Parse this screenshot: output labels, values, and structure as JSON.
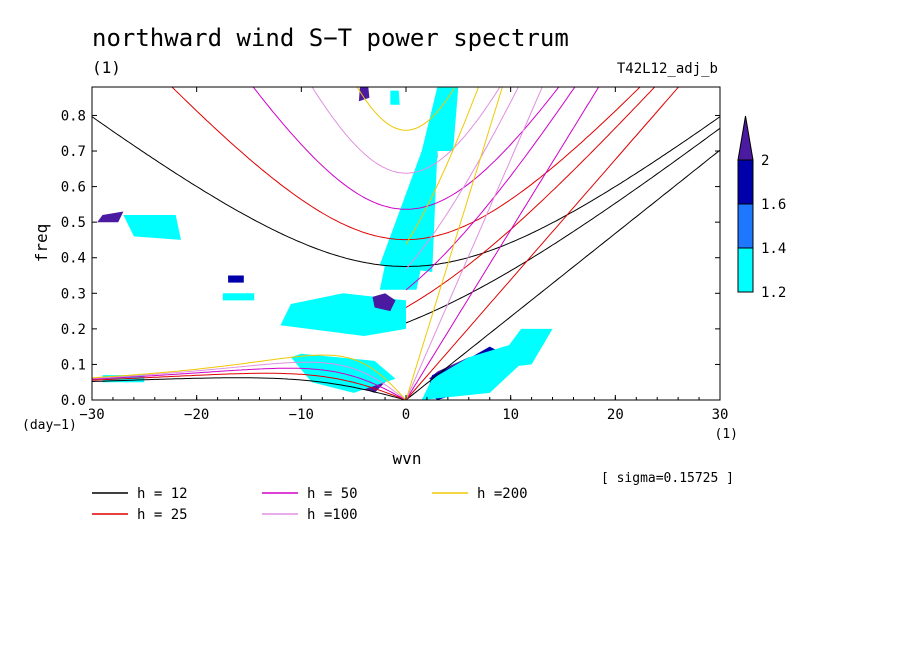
{
  "chart_data": {
    "type": "heatmap",
    "title": "northward wind S−T power spectrum",
    "units_top": "(1)",
    "run_id": "T42L12_adj_b",
    "xlabel": "wvn",
    "ylabel": "freq",
    "x_units": "(1)",
    "y_units": "(day−1)",
    "annotation": "[ sigma=0.15725 ]",
    "xlim": [
      -30,
      30
    ],
    "ylim": [
      0,
      0.88
    ],
    "xticks": [
      -30,
      -20,
      -10,
      0,
      10,
      20,
      30
    ],
    "xtick_labels": [
      "−30",
      "−20",
      "−10",
      "0",
      "10",
      "20",
      "30"
    ],
    "yticks": [
      0.0,
      0.1,
      0.2,
      0.3,
      0.4,
      0.5,
      0.6,
      0.7,
      0.8
    ],
    "ytick_labels": [
      "0.0",
      "0.1",
      "0.2",
      "0.3",
      "0.4",
      "0.5",
      "0.6",
      "0.7",
      "0.8"
    ],
    "colorbar": {
      "levels": [
        1.2,
        1.4,
        1.6,
        2
      ],
      "labels": [
        "1.2",
        "1.4",
        "1.6",
        "2"
      ],
      "colors": [
        "#00ffff",
        "#1e78ff",
        "#0000aa",
        "#4a1aa0"
      ]
    },
    "dispersion_curves": [
      {
        "name": "h = 12",
        "h": 12,
        "color": "#000000"
      },
      {
        "name": "h = 25",
        "h": 25,
        "color": "#e00000"
      },
      {
        "name": "h = 50",
        "h": 50,
        "color": "#d000c8"
      },
      {
        "name": "h =100",
        "h": 100,
        "color": "#e090e0"
      },
      {
        "name": "h =200",
        "h": 200,
        "color": "#f0c800"
      }
    ],
    "regions": [
      {
        "level": 2,
        "points": [
          [
            2.2,
            0.06
          ],
          [
            3.4,
            0.04
          ],
          [
            7,
            0.07
          ],
          [
            9,
            0.12
          ],
          [
            6,
            0.12
          ],
          [
            3,
            0.08
          ]
        ]
      },
      {
        "level": 1.6,
        "points": [
          [
            2,
            0.02
          ],
          [
            3,
            0.0
          ],
          [
            7.5,
            0.04
          ],
          [
            10,
            0.12
          ],
          [
            8,
            0.15
          ],
          [
            5,
            0.1
          ],
          [
            2.5,
            0.07
          ]
        ]
      },
      {
        "level": 1.2,
        "points": [
          [
            1.5,
            0.0
          ],
          [
            8,
            0.02
          ],
          [
            12,
            0.13
          ],
          [
            10.5,
            0.16
          ],
          [
            6,
            0.12
          ],
          [
            2.5,
            0.06
          ]
        ]
      },
      {
        "level": 1.2,
        "points": [
          [
            9,
            0.09
          ],
          [
            12,
            0.1
          ],
          [
            14,
            0.2
          ],
          [
            11,
            0.2
          ],
          [
            9.5,
            0.14
          ]
        ]
      },
      {
        "level": 2,
        "points": [
          [
            -10,
            0.23
          ],
          [
            -7,
            0.21
          ],
          [
            -4,
            0.21
          ],
          [
            -2,
            0.25
          ],
          [
            -4,
            0.26
          ],
          [
            -9,
            0.25
          ]
        ]
      },
      {
        "level": 1.6,
        "points": [
          [
            -11,
            0.22
          ],
          [
            -6,
            0.19
          ],
          [
            -2,
            0.2
          ],
          [
            -1,
            0.26
          ],
          [
            -5,
            0.28
          ],
          [
            -10,
            0.26
          ]
        ]
      },
      {
        "level": 1.2,
        "points": [
          [
            -12,
            0.21
          ],
          [
            -4,
            0.18
          ],
          [
            0,
            0.2
          ],
          [
            0,
            0.28
          ],
          [
            -6,
            0.3
          ],
          [
            -11,
            0.27
          ]
        ]
      },
      {
        "level": 2,
        "points": [
          [
            -9,
            0.1
          ],
          [
            -4,
            0.08
          ],
          [
            -2,
            0.05
          ],
          [
            -3,
            0.02
          ],
          [
            -7,
            0.06
          ],
          [
            -10,
            0.1
          ]
        ]
      },
      {
        "level": 1.2,
        "points": [
          [
            -10,
            0.13
          ],
          [
            -3,
            0.11
          ],
          [
            -1,
            0.06
          ],
          [
            -5,
            0.02
          ],
          [
            -9,
            0.05
          ],
          [
            -11,
            0.12
          ]
        ]
      },
      {
        "level": 2,
        "points": [
          [
            -3,
            0.26
          ],
          [
            -1.5,
            0.25
          ],
          [
            -1,
            0.28
          ],
          [
            -2,
            0.3
          ],
          [
            -3.2,
            0.29
          ]
        ]
      },
      {
        "level": 2,
        "points": [
          [
            -2,
            0.33
          ],
          [
            -0.5,
            0.32
          ],
          [
            0.5,
            0.36
          ],
          [
            -1,
            0.36
          ]
        ]
      },
      {
        "level": 1.2,
        "points": [
          [
            -2.5,
            0.31
          ],
          [
            1,
            0.31
          ],
          [
            1.5,
            0.38
          ],
          [
            -2,
            0.38
          ]
        ]
      },
      {
        "level": 2,
        "points": [
          [
            -2,
            0.39
          ],
          [
            0,
            0.38
          ],
          [
            1.5,
            0.43
          ],
          [
            0,
            0.44
          ],
          [
            -2,
            0.42
          ]
        ]
      },
      {
        "level": 2,
        "points": [
          [
            -1,
            0.45
          ],
          [
            0.5,
            0.43
          ],
          [
            1.5,
            0.48
          ],
          [
            2,
            0.52
          ],
          [
            0.5,
            0.52
          ],
          [
            -0.5,
            0.48
          ]
        ]
      },
      {
        "level": 2,
        "points": [
          [
            0.5,
            0.53
          ],
          [
            1.5,
            0.52
          ],
          [
            2,
            0.57
          ],
          [
            1.5,
            0.62
          ],
          [
            0.5,
            0.58
          ]
        ]
      },
      {
        "level": 2,
        "points": [
          [
            1.5,
            0.61
          ],
          [
            2.2,
            0.6
          ],
          [
            2.5,
            0.66
          ],
          [
            2,
            0.7
          ],
          [
            1.3,
            0.66
          ]
        ]
      },
      {
        "level": 2,
        "points": [
          [
            2.2,
            0.7
          ],
          [
            3,
            0.68
          ],
          [
            3,
            0.75
          ],
          [
            2.5,
            0.78
          ],
          [
            2.0,
            0.74
          ]
        ]
      },
      {
        "level": 2,
        "points": [
          [
            3.5,
            0.8
          ],
          [
            4.5,
            0.79
          ],
          [
            4.7,
            0.88
          ],
          [
            4.0,
            0.88
          ]
        ]
      },
      {
        "level": 2,
        "points": [
          [
            -4.5,
            0.84
          ],
          [
            -3.5,
            0.85
          ],
          [
            -3.6,
            0.88
          ],
          [
            -4.4,
            0.88
          ]
        ]
      },
      {
        "level": 1.2,
        "points": [
          [
            -1.5,
            0.83
          ],
          [
            -0.6,
            0.83
          ],
          [
            -0.7,
            0.87
          ],
          [
            -1.5,
            0.87
          ]
        ]
      },
      {
        "level": 2,
        "points": [
          [
            2.5,
            0.75
          ],
          [
            3.5,
            0.74
          ],
          [
            3.4,
            0.8
          ],
          [
            2.6,
            0.8
          ]
        ]
      },
      {
        "level": 1.2,
        "points": [
          [
            -2.5,
            0.38
          ],
          [
            2.5,
            0.36
          ],
          [
            3,
            0.7
          ],
          [
            4.5,
            0.7
          ],
          [
            5,
            0.88
          ],
          [
            3,
            0.88
          ],
          [
            1.5,
            0.7
          ],
          [
            -1,
            0.5
          ]
        ]
      },
      {
        "level": 2,
        "points": [
          [
            -25.5,
            0.51
          ],
          [
            -23,
            0.5
          ],
          [
            -22.5,
            0.47
          ],
          [
            -25.5,
            0.48
          ]
        ]
      },
      {
        "level": 1.2,
        "points": [
          [
            -27,
            0.52
          ],
          [
            -22,
            0.52
          ],
          [
            -21.5,
            0.45
          ],
          [
            -26,
            0.46
          ]
        ]
      },
      {
        "level": 2,
        "points": [
          [
            -29,
            0.52
          ],
          [
            -27,
            0.53
          ],
          [
            -27.5,
            0.5
          ],
          [
            -29.5,
            0.5
          ]
        ]
      },
      {
        "level": 1.6,
        "points": [
          [
            -17,
            0.35
          ],
          [
            -15.5,
            0.35
          ],
          [
            -15.5,
            0.33
          ],
          [
            -17,
            0.33
          ]
        ]
      },
      {
        "level": 1.2,
        "points": [
          [
            -29,
            0.05
          ],
          [
            -25,
            0.05
          ],
          [
            -25,
            0.07
          ],
          [
            -29,
            0.07
          ]
        ]
      },
      {
        "level": 1.2,
        "points": [
          [
            -17.5,
            0.3
          ],
          [
            -14.5,
            0.3
          ],
          [
            -14.5,
            0.28
          ],
          [
            -17.5,
            0.28
          ]
        ]
      }
    ]
  }
}
